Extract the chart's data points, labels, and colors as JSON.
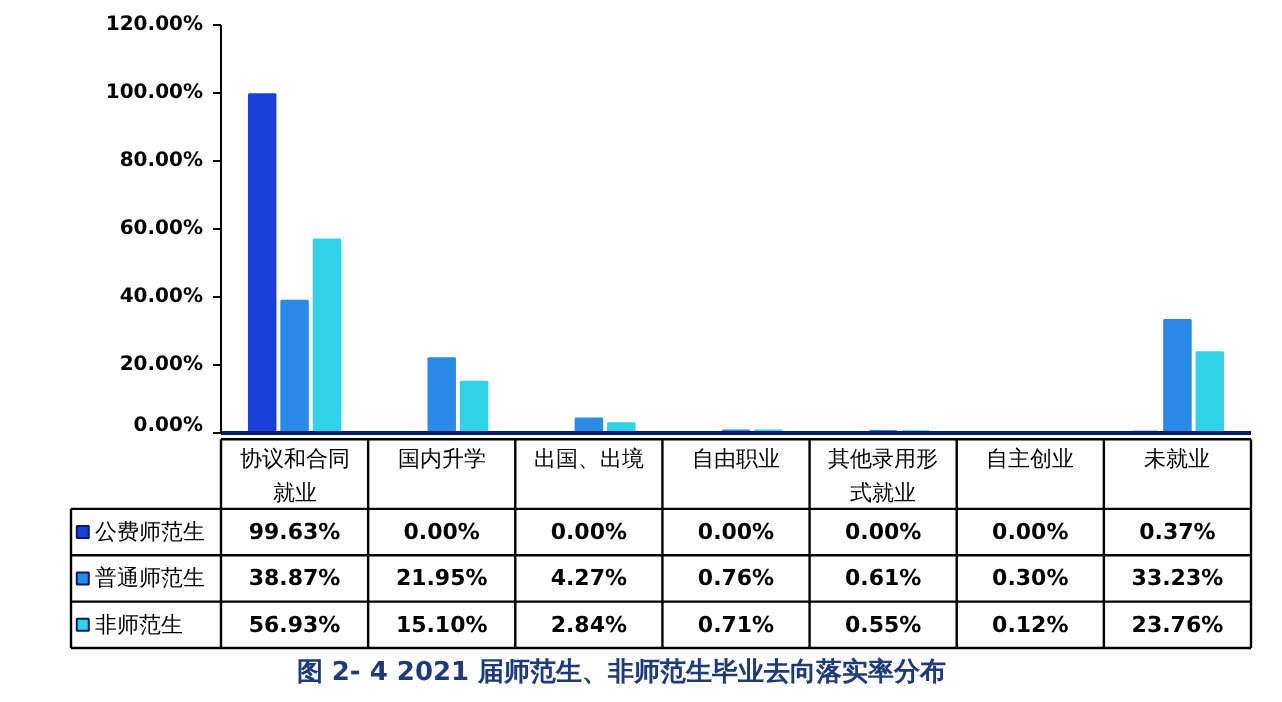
{
  "chart_data": {
    "type": "bar",
    "title": "图 2- 4  2021 届师范生、非师范生毕业去向落实率分布",
    "categories": [
      "协议和合同就业",
      "国内升学",
      "出国、出境",
      "自由职业",
      "其他录用形式就业",
      "自主创业",
      "未就业"
    ],
    "series": [
      {
        "name": "公费师范生",
        "color": "#1a3fd6",
        "values": [
          99.63,
          0.0,
          0.0,
          0.0,
          0.0,
          0.0,
          0.37
        ],
        "value_labels": [
          "99.63%",
          "0.00%",
          "0.00%",
          "0.00%",
          "0.00%",
          "0.00%",
          "0.37%"
        ]
      },
      {
        "name": "普通师范生",
        "color": "#2a8ae8",
        "values": [
          38.87,
          21.95,
          4.27,
          0.76,
          0.61,
          0.3,
          33.23
        ],
        "value_labels": [
          "38.87%",
          "21.95%",
          "4.27%",
          "0.76%",
          "0.61%",
          "0.30%",
          "33.23%"
        ]
      },
      {
        "name": "非师范生",
        "color": "#30d2ea",
        "values": [
          56.93,
          15.1,
          2.84,
          0.71,
          0.55,
          0.12,
          23.76
        ],
        "value_labels": [
          "56.93%",
          "15.10%",
          "2.84%",
          "0.71%",
          "0.55%",
          "0.12%",
          "23.76%"
        ]
      }
    ],
    "ylim": [
      0,
      120
    ],
    "yticks": [
      {
        "value": 0,
        "label": "0.00%"
      },
      {
        "value": 20,
        "label": "20.00%"
      },
      {
        "value": 40,
        "label": "40.00%"
      },
      {
        "value": 60,
        "label": "60.00%"
      },
      {
        "value": 80,
        "label": "80.00%"
      },
      {
        "value": 100,
        "label": "100.00%"
      },
      {
        "value": 120,
        "label": "120.00%"
      }
    ],
    "tick_labels": "y",
    "grid": false,
    "legend": "bottom"
  }
}
